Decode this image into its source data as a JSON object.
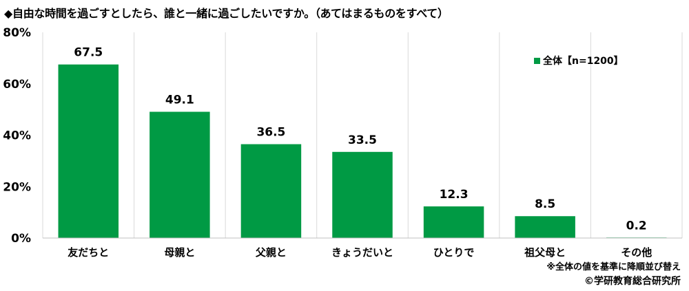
{
  "title": "◆自由な時間を過ごすとしたら、誰と一緒に過ごしたいですか。（あてはまるものをすべて）",
  "note": "※全体の値を基準に降順並び替え",
  "copyright": "©学研教育総合研究所",
  "colors": {
    "bar": "#009a44",
    "grid": "#d9d9d9",
    "axis": "#bfbfbf"
  },
  "chart_data": {
    "type": "bar",
    "categories": [
      "友だちと",
      "母親と",
      "父親と",
      "きょうだいと",
      "ひとりで",
      "祖父母と",
      "その他"
    ],
    "series": [
      {
        "name": "全体【n=1200】",
        "values": [
          67.5,
          49.1,
          36.5,
          33.5,
          12.3,
          8.5,
          0.2
        ]
      }
    ],
    "value_labels": [
      "67.5",
      "49.1",
      "36.5",
      "33.5",
      "12.3",
      "8.5",
      "0.2"
    ],
    "ylim": [
      0,
      80
    ],
    "yticks": [
      0,
      20,
      40,
      60,
      80
    ],
    "ytick_labels": [
      "0%",
      "20%",
      "40%",
      "60%",
      "80%"
    ],
    "grid": "vertical separators between categories",
    "legend_position": "top-right"
  }
}
